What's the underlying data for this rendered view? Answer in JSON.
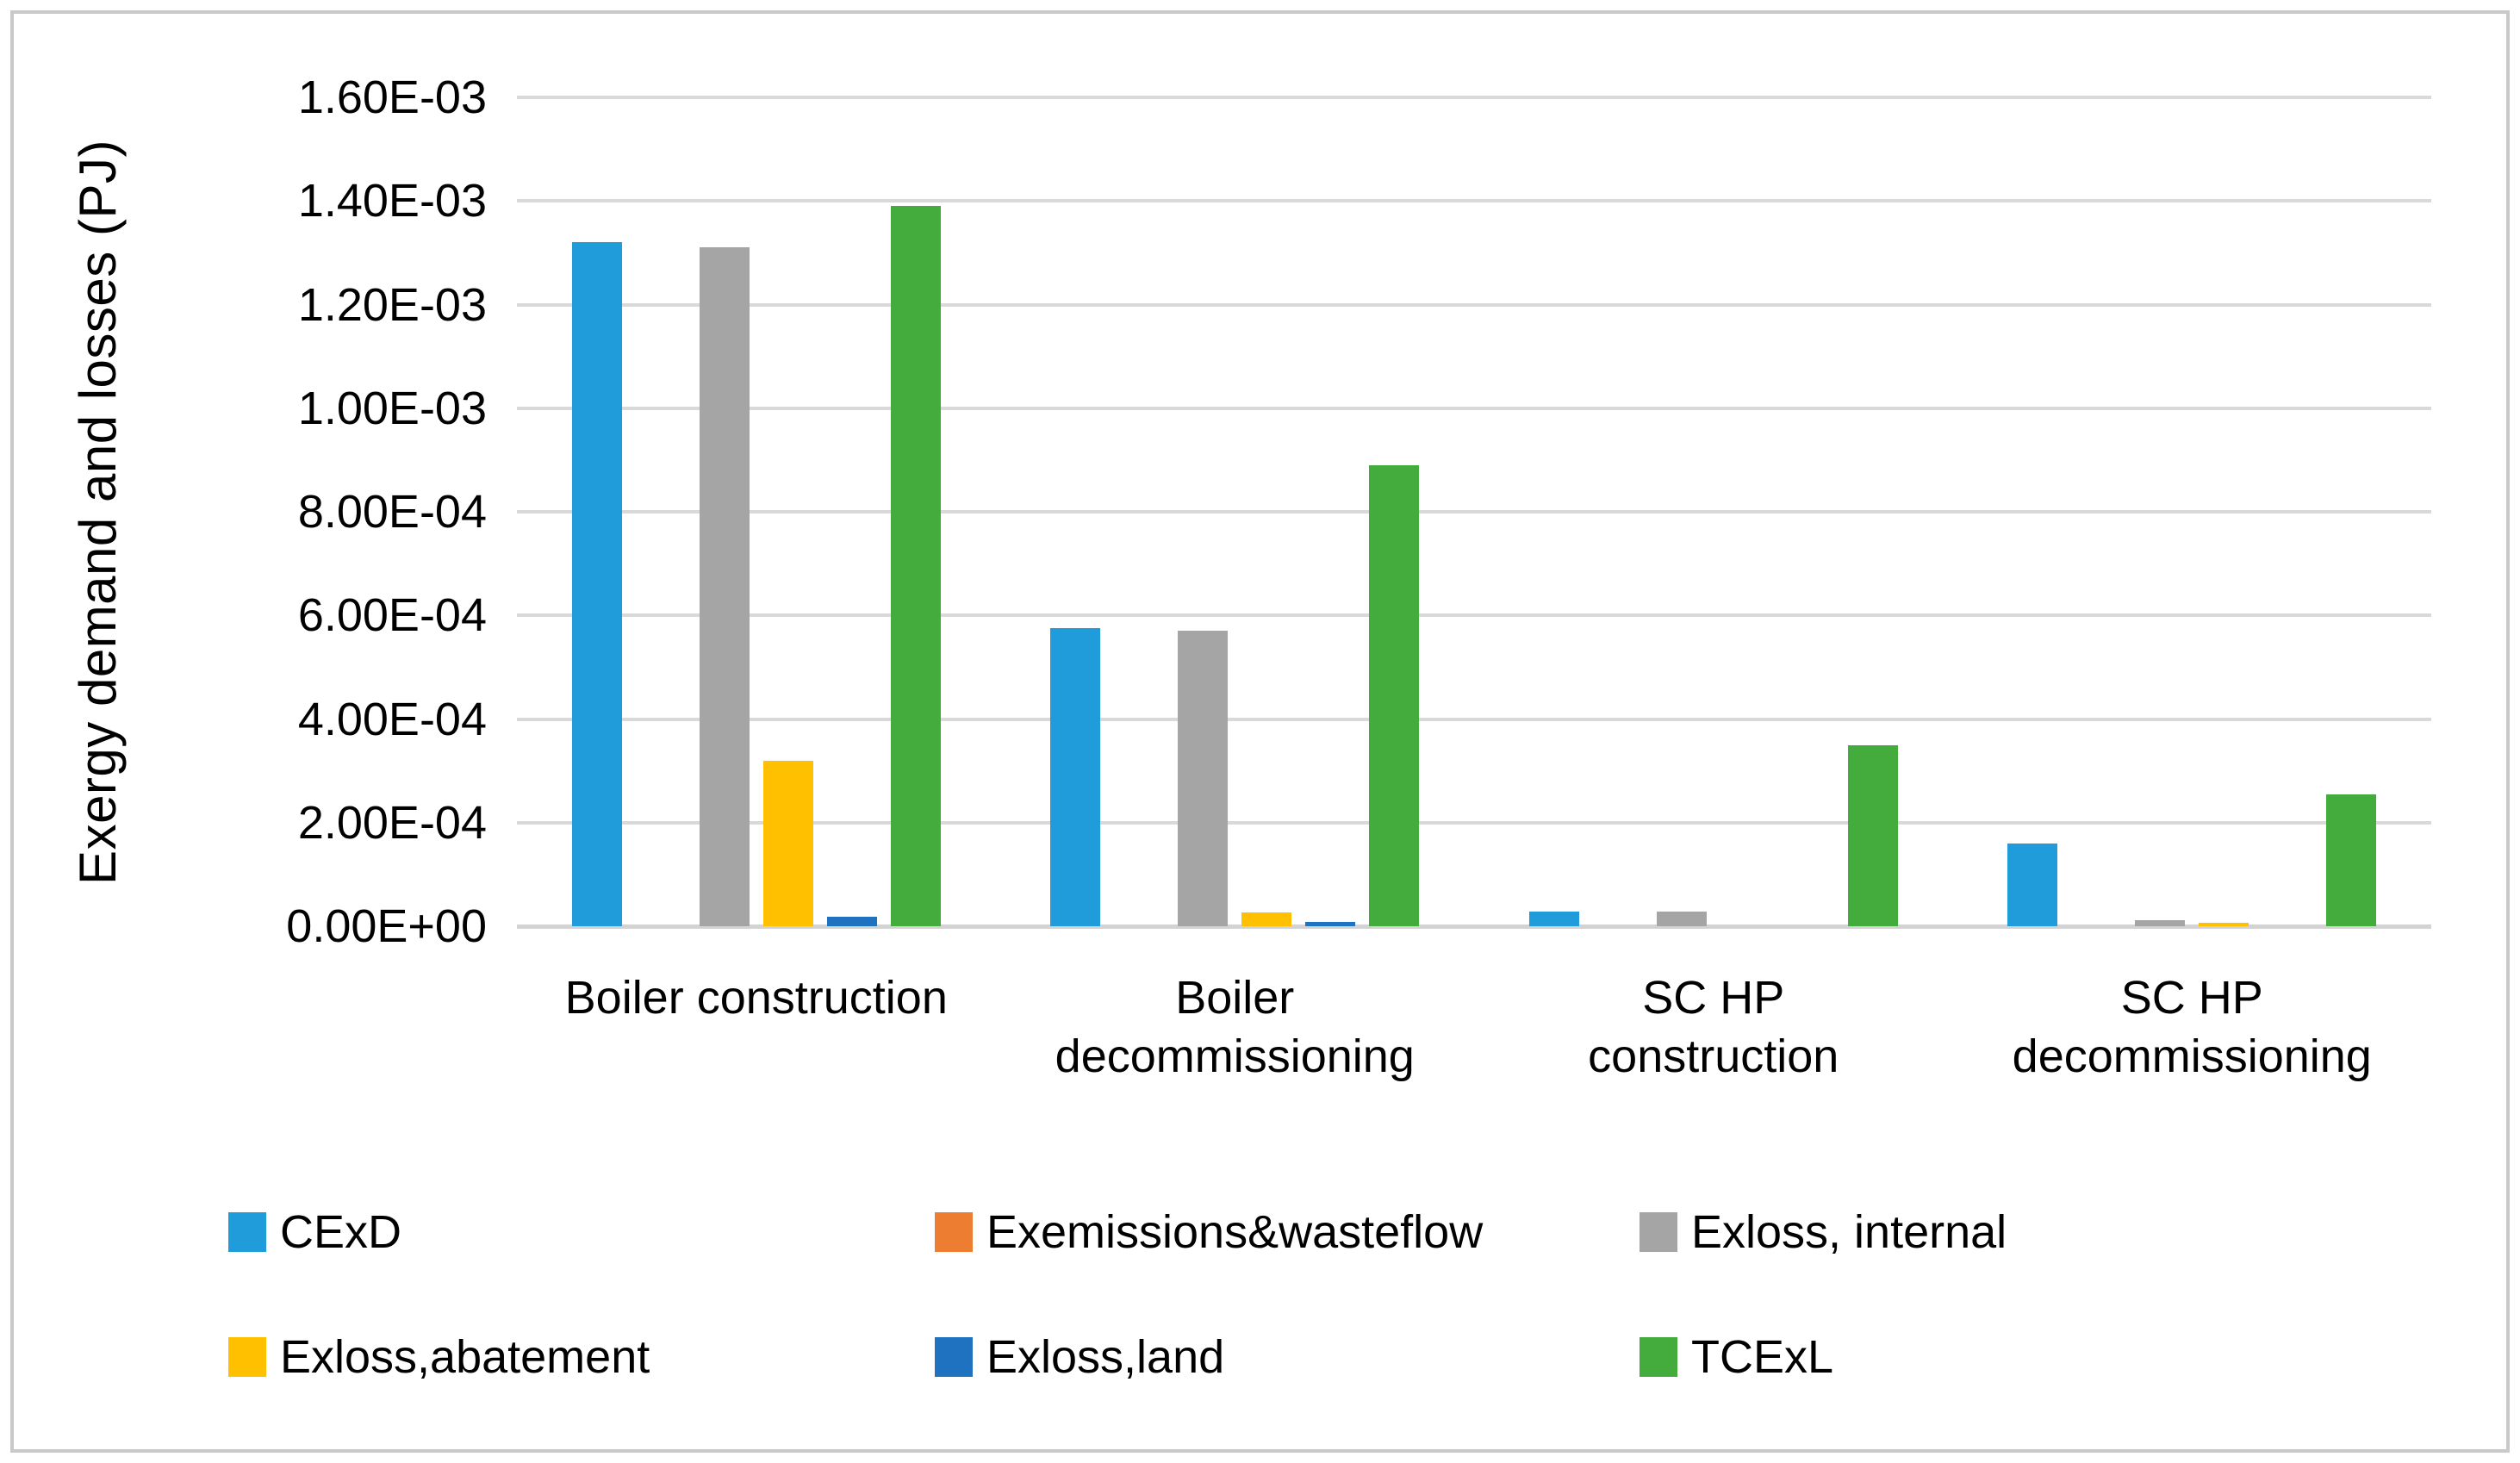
{
  "chart_data": {
    "type": "bar",
    "title": "",
    "xlabel": "",
    "ylabel": "Exergy demand and losses (PJ)",
    "unit": "PJ",
    "categories": [
      "Boiler construction",
      "Boiler decommissioning",
      "SC HP construction",
      "SC HP decommissioning"
    ],
    "series": [
      {
        "name": "CExD",
        "color": "#1f9cd9",
        "values": [
          0.00132,
          0.000575,
          2.8e-05,
          0.00016
        ]
      },
      {
        "name": "Exemissions&wasteflow",
        "color": "#ed7d31",
        "values": [
          0,
          0,
          0,
          0
        ]
      },
      {
        "name": "Exloss, internal",
        "color": "#a5a5a5",
        "values": [
          0.00131,
          0.00057,
          2.8e-05,
          1.2e-05
        ]
      },
      {
        "name": "Exloss,abatement",
        "color": "#ffc000",
        "values": [
          0.00032,
          2.7e-05,
          0,
          6e-06
        ]
      },
      {
        "name": "Exloss,land",
        "color": "#1e72bf",
        "values": [
          1.9e-05,
          8e-06,
          0,
          0
        ]
      },
      {
        "name": "TCExL",
        "color": "#43ac3c",
        "values": [
          0.00139,
          0.00089,
          0.00035,
          0.000255
        ]
      }
    ],
    "y_axis": {
      "min": 0,
      "max": 0.0016,
      "tick_step": 0.0002,
      "tick_labels": [
        "0.00E+00",
        "2.00E-04",
        "4.00E-04",
        "6.00E-04",
        "8.00E-04",
        "1.00E-03",
        "1.20E-03",
        "1.40E-03",
        "1.60E-03"
      ]
    },
    "gridlines": true,
    "legend_position": "bottom",
    "gridline_color": "#d9d9d9",
    "frame_color": "#c9c9c9"
  }
}
